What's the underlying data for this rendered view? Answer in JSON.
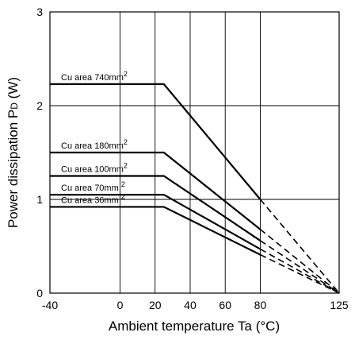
{
  "chart_data": {
    "type": "line",
    "title": "",
    "xlabel": "Ambient temperature Ta (°C)",
    "ylabel_main": "Power dissipation P",
    "ylabel_sub": "D",
    "ylabel_unit": " (W)",
    "xlim": [
      -40,
      125
    ],
    "ylim": [
      0,
      3
    ],
    "x_ticks": [
      -40,
      0,
      20,
      40,
      60,
      80,
      125
    ],
    "y_ticks": [
      0,
      1,
      2,
      3
    ],
    "x_gridlines": [
      0,
      20,
      40,
      60,
      80
    ],
    "y_gridlines": [
      1,
      2
    ],
    "grid": true,
    "series": [
      {
        "name": "Cu area 740mm",
        "unit_sup": "2",
        "points": [
          [
            -40,
            2.23
          ],
          [
            25,
            2.23
          ],
          [
            80,
            1.0
          ]
        ],
        "extrapolated": [
          [
            80,
            1.0
          ],
          [
            125,
            0
          ]
        ]
      },
      {
        "name": "Cu area 180mm",
        "unit_sup": "2",
        "points": [
          [
            -40,
            1.5
          ],
          [
            25,
            1.5
          ],
          [
            80,
            0.68
          ]
        ],
        "extrapolated": [
          [
            80,
            0.68
          ],
          [
            125,
            0
          ]
        ]
      },
      {
        "name": "Cu area 100mm",
        "unit_sup": "2",
        "points": [
          [
            -40,
            1.25
          ],
          [
            25,
            1.25
          ],
          [
            80,
            0.56
          ]
        ],
        "extrapolated": [
          [
            80,
            0.56
          ],
          [
            125,
            0
          ]
        ]
      },
      {
        "name": "Cu area 70mm ",
        "unit_sup": "2",
        "points": [
          [
            -40,
            1.05
          ],
          [
            25,
            1.05
          ],
          [
            80,
            0.47
          ]
        ],
        "extrapolated": [
          [
            80,
            0.47
          ],
          [
            125,
            0
          ]
        ]
      },
      {
        "name": "Cu area 36mm ",
        "unit_sup": "2",
        "points": [
          [
            -40,
            0.92
          ],
          [
            25,
            0.92
          ],
          [
            80,
            0.41
          ]
        ],
        "extrapolated": [
          [
            80,
            0.41
          ],
          [
            125,
            0
          ]
        ]
      }
    ]
  }
}
